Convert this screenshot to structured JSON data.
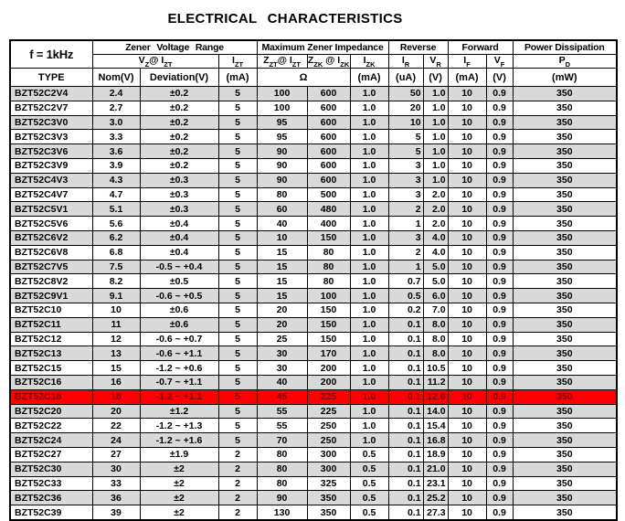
{
  "title": "ELECTRICAL CHARACTERISTICS",
  "colors": {
    "highlight_row_bg": "#fb0000",
    "highlight_row_text": "#7f0000",
    "zebra_row_bg": "#d9d9d9",
    "border": "#000000",
    "text": "#000000"
  },
  "table": {
    "corner_label": "f = 1kHz",
    "type_label": "TYPE",
    "groups": {
      "zener_voltage_range": "Zener Voltage Range",
      "max_zener_impedance": "Maximum Zener Impedance",
      "reverse": "Reverse",
      "forward": "Forward",
      "power_dissipation": "Power Dissipation"
    },
    "symbols": {
      "vz_izt": {
        "m1": "V",
        "s1": "Z",
        "m2": "@ I",
        "s2": "ZT"
      },
      "izt": {
        "m1": "I",
        "s1": "ZT"
      },
      "zzt_izt": {
        "m1": "Z",
        "s1": "ZT",
        "m2": "@ I",
        "s2": "ZT"
      },
      "zzk_izk": {
        "m1": "Z",
        "s1": "ZK",
        "m2": " @ I",
        "s2": "ZK"
      },
      "izk": {
        "m1": "I",
        "s1": "ZK"
      },
      "ir": {
        "m1": "I",
        "s1": "R"
      },
      "vr": {
        "m1": "V",
        "s1": "R"
      },
      "if": {
        "m1": "I",
        "s1": "F"
      },
      "vf": {
        "m1": "V",
        "s1": "F"
      },
      "pd": {
        "m1": "P",
        "s1": "D"
      }
    },
    "units": {
      "nom": "Nom(V)",
      "deviation": "Deviation(V)",
      "izt": "(mA)",
      "ohm": "Ω",
      "izk": "(mA)",
      "ir": "(uA)",
      "vr": "(V)",
      "if": "(mA)",
      "vf": "(V)",
      "pd": "(mW)"
    },
    "highlight_index": 21,
    "highlighted_type": "BZT52C18",
    "rows": [
      [
        "BZT52C2V4",
        "2.4",
        "±0.2",
        "5",
        "100",
        "600",
        "1.0",
        "50",
        "1.0",
        "10",
        "0.9",
        "350"
      ],
      [
        "BZT52C2V7",
        "2.7",
        "±0.2",
        "5",
        "100",
        "600",
        "1.0",
        "20",
        "1.0",
        "10",
        "0.9",
        "350"
      ],
      [
        "BZT52C3V0",
        "3.0",
        "±0.2",
        "5",
        "95",
        "600",
        "1.0",
        "10",
        "1.0",
        "10",
        "0.9",
        "350"
      ],
      [
        "BZT52C3V3",
        "3.3",
        "±0.2",
        "5",
        "95",
        "600",
        "1.0",
        "5",
        "1.0",
        "10",
        "0.9",
        "350"
      ],
      [
        "BZT52C3V6",
        "3.6",
        "±0.2",
        "5",
        "90",
        "600",
        "1.0",
        "5",
        "1.0",
        "10",
        "0.9",
        "350"
      ],
      [
        "BZT52C3V9",
        "3.9",
        "±0.2",
        "5",
        "90",
        "600",
        "1.0",
        "3",
        "1.0",
        "10",
        "0.9",
        "350"
      ],
      [
        "BZT52C4V3",
        "4.3",
        "±0.3",
        "5",
        "90",
        "600",
        "1.0",
        "3",
        "1.0",
        "10",
        "0.9",
        "350"
      ],
      [
        "BZT52C4V7",
        "4.7",
        "±0.3",
        "5",
        "80",
        "500",
        "1.0",
        "3",
        "2.0",
        "10",
        "0.9",
        "350"
      ],
      [
        "BZT52C5V1",
        "5.1",
        "±0.3",
        "5",
        "60",
        "480",
        "1.0",
        "2",
        "2.0",
        "10",
        "0.9",
        "350"
      ],
      [
        "BZT52C5V6",
        "5.6",
        "±0.4",
        "5",
        "40",
        "400",
        "1.0",
        "1",
        "2.0",
        "10",
        "0.9",
        "350"
      ],
      [
        "BZT52C6V2",
        "6.2",
        "±0.4",
        "5",
        "10",
        "150",
        "1.0",
        "3",
        "4.0",
        "10",
        "0.9",
        "350"
      ],
      [
        "BZT52C6V8",
        "6.8",
        "±0.4",
        "5",
        "15",
        "80",
        "1.0",
        "2",
        "4.0",
        "10",
        "0.9",
        "350"
      ],
      [
        "BZT52C7V5",
        "7.5",
        "-0.5 ~ +0.4",
        "5",
        "15",
        "80",
        "1.0",
        "1",
        "5.0",
        "10",
        "0.9",
        "350"
      ],
      [
        "BZT52C8V2",
        "8.2",
        "±0.5",
        "5",
        "15",
        "80",
        "1.0",
        "0.7",
        "5.0",
        "10",
        "0.9",
        "350"
      ],
      [
        "BZT52C9V1",
        "9.1",
        "-0.6 ~ +0.5",
        "5",
        "15",
        "100",
        "1.0",
        "0.5",
        "6.0",
        "10",
        "0.9",
        "350"
      ],
      [
        "BZT52C10",
        "10",
        "±0.6",
        "5",
        "20",
        "150",
        "1.0",
        "0.2",
        "7.0",
        "10",
        "0.9",
        "350"
      ],
      [
        "BZT52C11",
        "11",
        "±0.6",
        "5",
        "20",
        "150",
        "1.0",
        "0.1",
        "8.0",
        "10",
        "0.9",
        "350"
      ],
      [
        "BZT52C12",
        "12",
        "-0.6 ~ +0.7",
        "5",
        "25",
        "150",
        "1.0",
        "0.1",
        "8.0",
        "10",
        "0.9",
        "350"
      ],
      [
        "BZT52C13",
        "13",
        "-0.6 ~ +1.1",
        "5",
        "30",
        "170",
        "1.0",
        "0.1",
        "8.0",
        "10",
        "0.9",
        "350"
      ],
      [
        "BZT52C15",
        "15",
        "-1.2 ~ +0.6",
        "5",
        "30",
        "200",
        "1.0",
        "0.1",
        "10.5",
        "10",
        "0.9",
        "350"
      ],
      [
        "BZT52C16",
        "16",
        "-0.7 ~ +1.1",
        "5",
        "40",
        "200",
        "1.0",
        "0.1",
        "11.2",
        "10",
        "0.9",
        "350"
      ],
      [
        "BZT52C18",
        "18",
        "-1.2 ~ +1.1",
        "5",
        "45",
        "225",
        "1.0",
        "0.1",
        "12.6",
        "10",
        "0.9",
        "350"
      ],
      [
        "BZT52C20",
        "20",
        "±1.2",
        "5",
        "55",
        "225",
        "1.0",
        "0.1",
        "14.0",
        "10",
        "0.9",
        "350"
      ],
      [
        "BZT52C22",
        "22",
        "-1.2 ~ +1.3",
        "5",
        "55",
        "250",
        "1.0",
        "0.1",
        "15.4",
        "10",
        "0.9",
        "350"
      ],
      [
        "BZT52C24",
        "24",
        "-1.2 ~ +1.6",
        "5",
        "70",
        "250",
        "1.0",
        "0.1",
        "16.8",
        "10",
        "0.9",
        "350"
      ],
      [
        "BZT52C27",
        "27",
        "±1.9",
        "2",
        "80",
        "300",
        "0.5",
        "0.1",
        "18.9",
        "10",
        "0.9",
        "350"
      ],
      [
        "BZT52C30",
        "30",
        "±2",
        "2",
        "80",
        "300",
        "0.5",
        "0.1",
        "21.0",
        "10",
        "0.9",
        "350"
      ],
      [
        "BZT52C33",
        "33",
        "±2",
        "2",
        "80",
        "325",
        "0.5",
        "0.1",
        "23.1",
        "10",
        "0.9",
        "350"
      ],
      [
        "BZT52C36",
        "36",
        "±2",
        "2",
        "90",
        "350",
        "0.5",
        "0.1",
        "25.2",
        "10",
        "0.9",
        "350"
      ],
      [
        "BZT52C39",
        "39",
        "±2",
        "2",
        "130",
        "350",
        "0.5",
        "0.1",
        "27.3",
        "10",
        "0.9",
        "350"
      ]
    ]
  }
}
